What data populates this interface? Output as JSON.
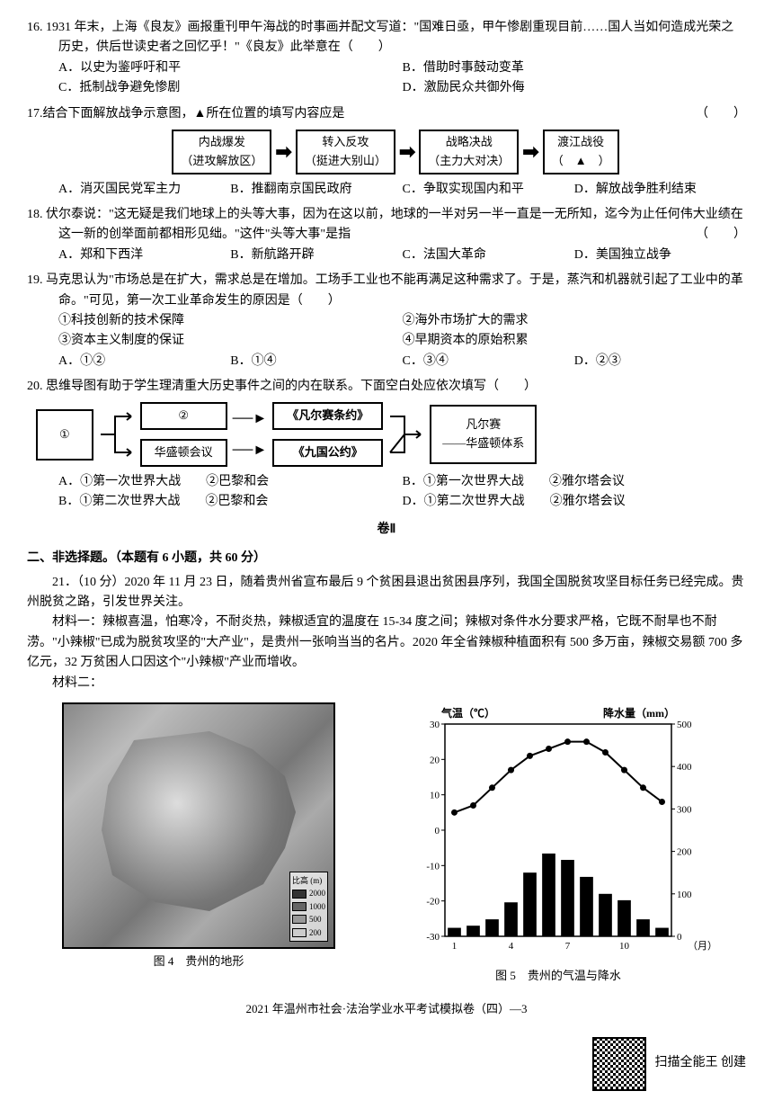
{
  "q16": {
    "num": "16.",
    "text": "1931 年末，上海《良友》画报重刊甲午海战的时事画并配文写道：\"国难日亟，甲午惨剧重现目前……国人当如何造成光荣之历史，供后世读史者之回忆乎！\"《良友》此举意在（　　）",
    "opts": {
      "A": "A．以史为鉴呼吁和平",
      "B": "B．借助时事鼓动变革",
      "C": "C．抵制战争避免惨剧",
      "D": "D．激励民众共御外侮"
    }
  },
  "q17": {
    "num": "17.",
    "text": "结合下面解放战争示意图，▲所在位置的填写内容应是",
    "paren": "（　　）",
    "boxes": {
      "b1a": "内战爆发",
      "b1b": "（进攻解放区）",
      "b2a": "转入反攻",
      "b2b": "（挺进大别山）",
      "b3a": "战略决战",
      "b3b": "（主力大对决）",
      "b4a": "渡江战役",
      "b4b": "（　▲　）"
    },
    "opts": {
      "A": "A．消灭国民党军主力",
      "B": "B．推翻南京国民政府",
      "C": "C．争取实现国内和平",
      "D": "D．解放战争胜利结束"
    }
  },
  "q18": {
    "num": "18.",
    "text": "伏尔泰说：\"这无疑是我们地球上的头等大事，因为在这以前，地球的一半对另一半一直是一无所知，迄今为止任何伟大业绩在这一新的创举面前都相形见绌。\"这件\"头等大事\"是指",
    "paren": "（　　）",
    "opts": {
      "A": "A．郑和下西洋",
      "B": "B．新航路开辟",
      "C": "C．法国大革命",
      "D": "D．美国独立战争"
    }
  },
  "q19": {
    "num": "19.",
    "text": "马克思认为\"市场总是在扩大，需求总是在增加。工场手工业也不能再满足这种需求了。于是，蒸汽和机器就引起了工业中的革命。\"可见，第一次工业革命发生的原因是（　　）",
    "items": {
      "i1": "①科技创新的技术保障",
      "i2": "②海外市场扩大的需求",
      "i3": "③资本主义制度的保证",
      "i4": "④早期资本的原始积累"
    },
    "opts": {
      "A": "A．①②",
      "B": "B．①④",
      "C": "C．③④",
      "D": "D．②③"
    }
  },
  "q20": {
    "num": "20.",
    "text": "思维导图有助于学生理清重大历史事件之间的内在联系。下面空白处应依次填写（　　）",
    "boxes": {
      "b1": "①",
      "b2": "②",
      "b3": "华盛顿会议",
      "b4": "《凡尔赛条约》",
      "b5": "《九国公约》",
      "b6a": "凡尔赛",
      "b6b": "——华盛顿体系"
    },
    "opts": {
      "A": "A．①第一次世界大战　　②巴黎和会",
      "B": "B．①第一次世界大战　　②雅尔塔会议",
      "C": "B．①第二次世界大战　　②巴黎和会",
      "D": "D．①第二次世界大战　　②雅尔塔会议"
    }
  },
  "juan2": "卷Ⅱ",
  "section2_title": "二、非选择题。（本题有 6 小题，共 60 分）",
  "q21": {
    "intro": "21．（10 分）2020 年 11 月 23 日，随着贵州省宣布最后 9 个贫困县退出贫困县序列，我国全国脱贫攻坚目标任务已经完成。贵州脱贫之路，引发世界关注。",
    "m1_label": "材料一：",
    "m1": "辣椒喜温，怕寒冷，不耐炎热，辣椒适宜的温度在 15-34 度之间；辣椒对条件水分要求严格，它既不耐旱也不耐涝。\"小辣椒\"已成为脱贫攻坚的\"大产业\"，是贵州一张响当当的名片。2020 年全省辣椒种植面积有 500 多万亩，辣椒交易额 700 多亿元，32 万贫困人口因这个\"小辣椒\"产业而增收。",
    "m2_label": "材料二：",
    "fig4_caption": "图 4　贵州的地形",
    "fig5_caption": "图 5　贵州的气温与降水",
    "map_legend_title": "比高 (m)",
    "map_legend_vals": [
      "2000",
      "1000",
      "500",
      "200"
    ]
  },
  "chart": {
    "temp_label": "气温（℃）",
    "precip_label": "降水量（mm）",
    "x_label": "（月）",
    "x_ticks": [
      1,
      4,
      7,
      10
    ],
    "months": [
      1,
      2,
      3,
      4,
      5,
      6,
      7,
      8,
      9,
      10,
      11,
      12
    ],
    "temp_values": [
      5,
      7,
      12,
      17,
      21,
      23,
      25,
      25,
      22,
      17,
      12,
      8
    ],
    "temp_ylim": [
      -30,
      30
    ],
    "temp_ticks": [
      -30,
      -20,
      -10,
      0,
      10,
      20,
      30
    ],
    "precip_values": [
      20,
      25,
      40,
      80,
      150,
      195,
      180,
      140,
      100,
      85,
      40,
      20
    ],
    "precip_ylim": [
      0,
      500
    ],
    "precip_ticks": [
      0,
      100,
      200,
      300,
      400,
      500
    ],
    "line_color": "#000000",
    "bar_color": "#000000",
    "bg": "#ffffff"
  },
  "footer": "2021 年温州市社会·法治学业水平考试模拟卷（四）—3",
  "scan_text": "扫描全能王  创建"
}
